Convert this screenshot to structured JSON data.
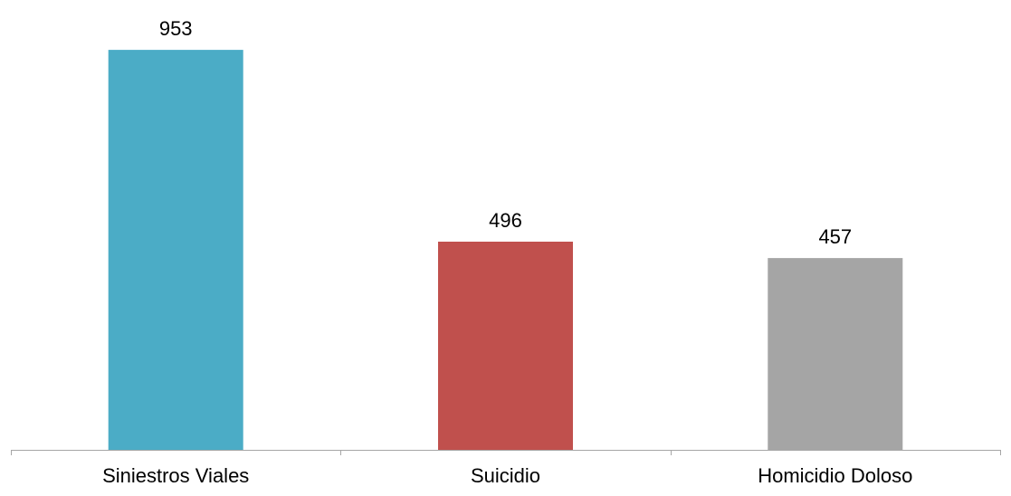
{
  "chart_data": {
    "type": "bar",
    "categories": [
      "Siniestros Viales",
      "Suicidio",
      "Homicidio Doloso"
    ],
    "values": [
      953,
      496,
      457
    ],
    "data_labels": [
      "953",
      "496",
      "457"
    ],
    "colors": [
      "#4BACC6",
      "#C0504D",
      "#A5A5A5"
    ],
    "axis_color": "#A6A6A6",
    "title": "",
    "xlabel": "",
    "ylabel": "",
    "ylim": [
      0,
      1000
    ],
    "grid": false,
    "legend": "none"
  }
}
